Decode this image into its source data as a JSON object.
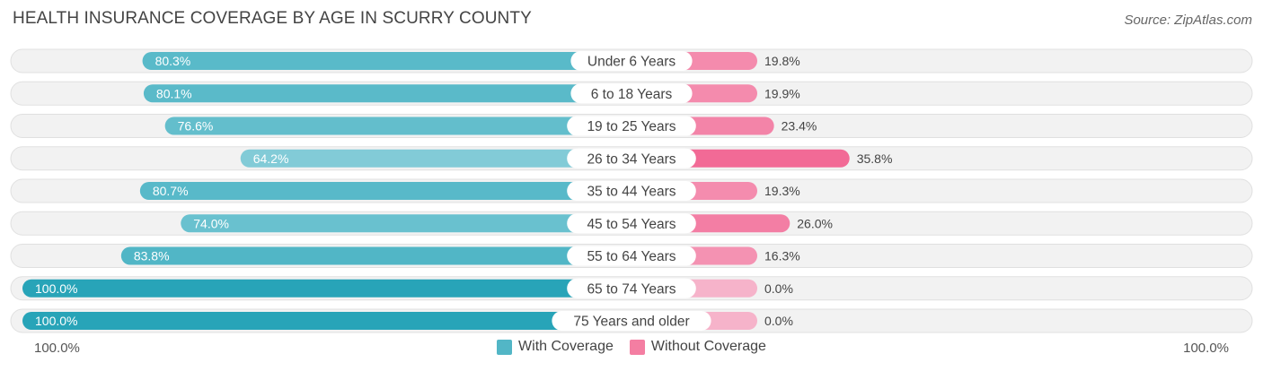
{
  "title": "HEALTH INSURANCE COVERAGE BY AGE IN SCURRY COUNTY",
  "source": "Source: ZipAtlas.com",
  "axis": {
    "left_label": "100.0%",
    "right_label": "100.0%"
  },
  "legend": [
    {
      "label": "With Coverage",
      "color": "#52b6c6"
    },
    {
      "label": "Without Coverage",
      "color": "#f47ea2"
    }
  ],
  "chart_data": {
    "type": "bar",
    "orientation": "horizontal-diverging",
    "title": "HEALTH INSURANCE COVERAGE BY AGE IN SCURRY COUNTY",
    "categories": [
      "Under 6 Years",
      "6 to 18 Years",
      "19 to 25 Years",
      "26 to 34 Years",
      "35 to 44 Years",
      "45 to 54 Years",
      "55 to 64 Years",
      "65 to 74 Years",
      "75 Years and older"
    ],
    "series": [
      {
        "name": "With Coverage",
        "values": [
          80.3,
          80.1,
          76.6,
          64.2,
          80.7,
          74.0,
          83.8,
          100.0,
          100.0
        ],
        "labels": [
          "80.3%",
          "80.1%",
          "76.6%",
          "64.2%",
          "80.7%",
          "74.0%",
          "83.8%",
          "100.0%",
          "100.0%"
        ]
      },
      {
        "name": "Without Coverage",
        "values": [
          19.8,
          19.9,
          23.4,
          35.8,
          19.3,
          26.0,
          16.3,
          0.0,
          0.0
        ],
        "labels": [
          "19.8%",
          "19.9%",
          "23.4%",
          "35.8%",
          "19.3%",
          "26.0%",
          "16.3%",
          "0.0%",
          "0.0%"
        ]
      }
    ],
    "xlim": [
      -100,
      100
    ],
    "legend_position": "bottom-center"
  }
}
